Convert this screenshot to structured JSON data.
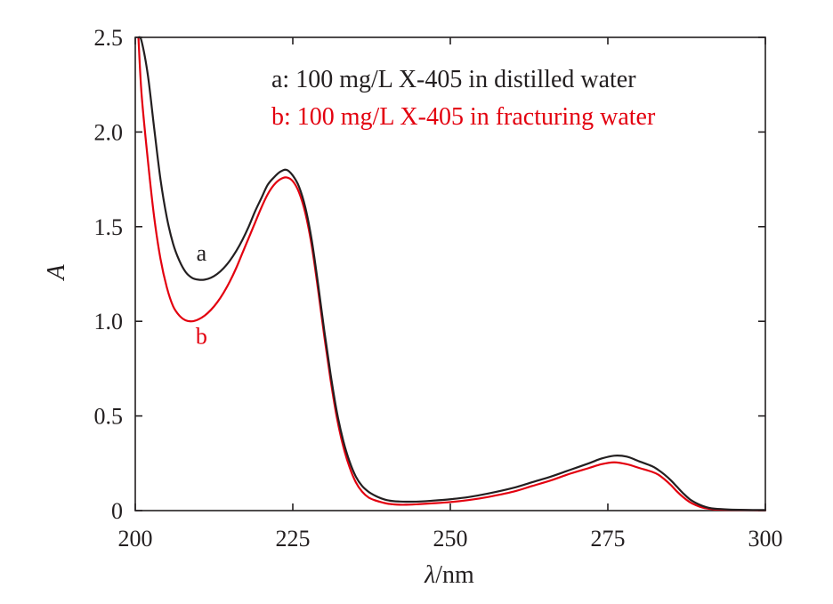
{
  "chart_data": {
    "type": "line",
    "xlabel": "λ/nm",
    "xlabel_italic": "λ",
    "xlabel_rest": "/nm",
    "ylabel": "A",
    "xlim": [
      200,
      300
    ],
    "ylim": [
      0,
      2.5
    ],
    "x_ticks": [
      200,
      225,
      250,
      275,
      300
    ],
    "x_tick_labels": [
      "200",
      "225",
      "250",
      "275",
      "300"
    ],
    "y_ticks": [
      0,
      0.5,
      1.0,
      1.5,
      2.0,
      2.5
    ],
    "y_tick_labels": [
      "0",
      "0.5",
      "1.0",
      "1.5",
      "2.0",
      "2.5"
    ],
    "grid": false,
    "legend_position": "top-right",
    "series": [
      {
        "name": "a: 100 mg/L X-405 in distilled water",
        "label": "a",
        "color": "#231f20",
        "x": [
          200.5,
          201,
          202,
          203,
          204,
          205,
          206,
          207,
          208,
          209,
          210,
          211,
          212,
          213,
          214,
          215,
          216,
          217,
          218,
          219,
          220,
          221,
          222,
          223,
          224,
          225,
          226,
          227,
          228,
          229,
          230,
          231,
          232,
          233,
          234,
          235,
          236,
          237,
          238,
          239,
          240,
          241,
          242,
          243,
          244,
          245,
          247,
          250,
          253,
          256,
          260,
          263,
          266,
          269,
          272,
          274,
          276,
          278,
          280,
          282,
          283,
          284,
          285,
          286,
          287,
          288,
          289,
          290,
          291,
          292,
          294,
          296,
          298,
          300
        ],
        "y": [
          2.5,
          2.48,
          2.3,
          2.02,
          1.75,
          1.55,
          1.41,
          1.32,
          1.26,
          1.23,
          1.22,
          1.22,
          1.23,
          1.25,
          1.28,
          1.32,
          1.37,
          1.43,
          1.5,
          1.58,
          1.65,
          1.72,
          1.76,
          1.79,
          1.8,
          1.77,
          1.71,
          1.6,
          1.43,
          1.2,
          0.95,
          0.72,
          0.52,
          0.37,
          0.26,
          0.18,
          0.13,
          0.1,
          0.08,
          0.065,
          0.055,
          0.05,
          0.048,
          0.047,
          0.047,
          0.048,
          0.052,
          0.06,
          0.072,
          0.09,
          0.12,
          0.15,
          0.18,
          0.215,
          0.25,
          0.275,
          0.29,
          0.285,
          0.26,
          0.235,
          0.215,
          0.19,
          0.16,
          0.125,
          0.09,
          0.06,
          0.04,
          0.025,
          0.015,
          0.01,
          0.006,
          0.004,
          0.003,
          0.003
        ]
      },
      {
        "name": "b: 100 mg/L X-405 in fracturing water",
        "label": "b",
        "color": "#e3000f",
        "x": [
          200.5,
          201,
          202,
          203,
          204,
          205,
          206,
          207,
          208,
          209,
          210,
          211,
          212,
          213,
          214,
          215,
          216,
          217,
          218,
          219,
          220,
          221,
          222,
          223,
          224,
          225,
          226,
          227,
          228,
          229,
          230,
          231,
          232,
          233,
          234,
          235,
          236,
          237,
          238,
          239,
          240,
          241,
          242,
          243,
          244,
          245,
          247,
          250,
          253,
          256,
          260,
          263,
          266,
          269,
          272,
          274,
          276,
          278,
          280,
          282,
          283,
          284,
          285,
          286,
          287,
          288,
          289,
          290,
          291,
          292,
          294,
          296,
          298,
          300
        ],
        "y": [
          2.5,
          2.2,
          1.85,
          1.55,
          1.33,
          1.18,
          1.08,
          1.03,
          1.005,
          1.0,
          1.01,
          1.03,
          1.06,
          1.1,
          1.15,
          1.21,
          1.28,
          1.36,
          1.44,
          1.52,
          1.6,
          1.67,
          1.72,
          1.75,
          1.76,
          1.74,
          1.68,
          1.57,
          1.4,
          1.17,
          0.92,
          0.69,
          0.49,
          0.34,
          0.23,
          0.15,
          0.1,
          0.07,
          0.055,
          0.045,
          0.037,
          0.033,
          0.031,
          0.031,
          0.032,
          0.034,
          0.038,
          0.045,
          0.056,
          0.072,
          0.1,
          0.13,
          0.16,
          0.195,
          0.225,
          0.245,
          0.255,
          0.245,
          0.225,
          0.205,
          0.19,
          0.165,
          0.135,
          0.1,
          0.07,
          0.045,
          0.028,
          0.016,
          0.01,
          0.006,
          0.004,
          0.003,
          0.002,
          0.002
        ]
      }
    ],
    "curve_labels": [
      {
        "text": "a",
        "x": 210.5,
        "y": 1.32,
        "color": "#231f20"
      },
      {
        "text": "b",
        "x": 210.5,
        "y": 0.88,
        "color": "#e3000f"
      }
    ]
  }
}
